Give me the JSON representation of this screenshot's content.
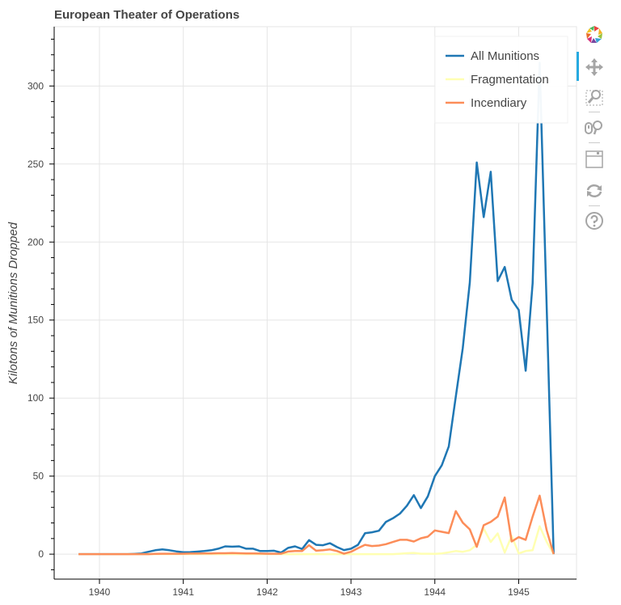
{
  "chart_data": {
    "type": "line",
    "title": "European Theater of Operations",
    "xlabel": "",
    "ylabel": "Kilotons of Munitions Dropped",
    "xlim": [
      1939.46,
      1945.69
    ],
    "ylim": [
      -16,
      338
    ],
    "x_ticks": [
      "1940",
      "1941",
      "1942",
      "1943",
      "1944",
      "1945"
    ],
    "y_ticks": [
      "0",
      "50",
      "100",
      "150",
      "200",
      "250",
      "300"
    ],
    "grid": true,
    "legend_position": "top-right",
    "x": [
      "1939-10",
      "1939-11",
      "1939-12",
      "1940-01",
      "1940-02",
      "1940-03",
      "1940-04",
      "1940-05",
      "1940-06",
      "1940-07",
      "1940-08",
      "1940-09",
      "1940-10",
      "1940-11",
      "1940-12",
      "1941-01",
      "1941-02",
      "1941-03",
      "1941-04",
      "1941-05",
      "1941-06",
      "1941-07",
      "1941-08",
      "1941-09",
      "1941-10",
      "1941-11",
      "1941-12",
      "1942-01",
      "1942-02",
      "1942-03",
      "1942-04",
      "1942-05",
      "1942-06",
      "1942-07",
      "1942-08",
      "1942-09",
      "1942-10",
      "1942-11",
      "1942-12",
      "1943-01",
      "1943-02",
      "1943-03",
      "1943-04",
      "1943-05",
      "1943-06",
      "1943-07",
      "1943-08",
      "1943-09",
      "1943-10",
      "1943-11",
      "1943-12",
      "1944-01",
      "1944-02",
      "1944-03",
      "1944-04",
      "1944-05",
      "1944-06",
      "1944-07",
      "1944-08",
      "1944-09",
      "1944-10",
      "1944-11",
      "1944-12",
      "1945-01",
      "1945-02",
      "1945-03",
      "1945-04",
      "1945-05",
      "1945-06"
    ],
    "series": [
      {
        "name": "All Munitions",
        "color": "#1f77b4",
        "values": [
          0,
          0,
          0,
          0,
          0,
          0,
          0,
          0,
          0.2,
          0.5,
          1.5,
          2.5,
          3,
          2.5,
          1.8,
          1.2,
          1.3,
          1.6,
          2,
          2.5,
          3.5,
          5,
          4.8,
          5,
          3.5,
          3.5,
          2,
          2,
          2.2,
          1,
          4,
          5,
          3.3,
          9,
          6,
          5.7,
          7,
          4.5,
          2.6,
          3.5,
          6,
          13.4,
          14,
          15,
          20.7,
          23,
          26,
          31,
          37.8,
          29.5,
          37,
          50,
          57,
          69,
          101,
          132,
          174,
          251,
          216,
          245,
          175,
          184,
          163,
          156.5,
          117.5,
          173.5,
          315,
          160,
          0
        ]
      },
      {
        "name": "Fragmentation",
        "color": "#ffffb2",
        "values": [
          0,
          0,
          0,
          0,
          0,
          0,
          0,
          0,
          0,
          0,
          0,
          0,
          0,
          0,
          0,
          0,
          0,
          0,
          0,
          0,
          0,
          0,
          0,
          0,
          0,
          0,
          0,
          0,
          0,
          0,
          0,
          0,
          0,
          0,
          0,
          0,
          0,
          0,
          0,
          0,
          0,
          0,
          0,
          0,
          0,
          0,
          0.3,
          0.6,
          0.8,
          0.3,
          0.3,
          0.2,
          0.5,
          1.2,
          2,
          1.5,
          2.5,
          6,
          16.4,
          7.8,
          13.3,
          1,
          11.7,
          0.5,
          2,
          2.5,
          17.9,
          8,
          0
        ]
      },
      {
        "name": "Incendiary",
        "color": "#fc8d59",
        "values": [
          0,
          0,
          0,
          0,
          0,
          0,
          0,
          0,
          0,
          0,
          0,
          0.2,
          0.3,
          0.3,
          0.3,
          0.3,
          0.4,
          0.4,
          0.5,
          0.5,
          0.6,
          0.6,
          0.7,
          0.6,
          0.5,
          0.5,
          0.4,
          0.3,
          0.3,
          0.3,
          1.7,
          2,
          2,
          5.7,
          2.2,
          2.5,
          3,
          2,
          0.3,
          1.5,
          3.8,
          6,
          5.2,
          5.5,
          6.4,
          7.8,
          9.2,
          9.2,
          8.1,
          10.2,
          11.2,
          15.2,
          14.3,
          13.5,
          27.6,
          20.2,
          15.9,
          4.7,
          18.5,
          20.7,
          24,
          36.3,
          8.1,
          10.9,
          9.2,
          24,
          37.5,
          15.5,
          0
        ]
      }
    ]
  },
  "toolbar": {
    "tools": [
      "bokeh-logo-icon",
      "pan-icon",
      "box-zoom-icon",
      "wheel-zoom-icon",
      "save-icon",
      "reset-icon",
      "help-icon"
    ],
    "active": "pan-icon",
    "accent": "#26aae1"
  }
}
